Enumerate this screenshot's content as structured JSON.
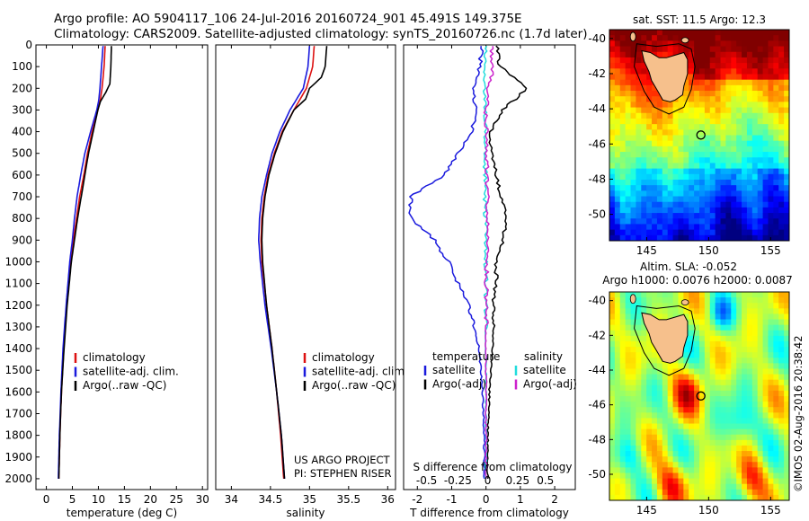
{
  "title": {
    "line1": "Argo profile: AO 5904117_106 24-Jul-2016 20160724_901 45.491S 149.375E",
    "line2": "Climatology: CARS2009. Satellite-adjusted climatology: synTS_20160726.nc (1.7d later)"
  },
  "credit": {
    "line1": "US ARGO PROJECT",
    "line2": "PI: STEPHEN RISER",
    "stamp": "©IMOS 02-Aug-2016 20:38:42"
  },
  "colors": {
    "climatology": "#dd1111",
    "satellite": "#1a1add",
    "argo": "#000000",
    "sat_salinity": "#22dddd",
    "argo_salinity": "#cc22cc",
    "land": "#f6c08c"
  },
  "chart_data": [
    {
      "type": "line",
      "name": "temperature-profile",
      "xlabel": "temperature (deg C)",
      "ylabel": "",
      "xlim": [
        -2,
        31
      ],
      "ylim": [
        2050,
        0
      ],
      "xticks": [
        0,
        5,
        10,
        15,
        20,
        25,
        30
      ],
      "yticks": [
        0,
        100,
        200,
        300,
        400,
        500,
        600,
        700,
        800,
        900,
        1000,
        1100,
        1200,
        1300,
        1400,
        1500,
        1600,
        1700,
        1800,
        1900,
        2000
      ],
      "legend": [
        "climatology",
        "satellite-adj. clim.",
        "Argo(..raw -QC)"
      ],
      "series": [
        {
          "name": "climatology",
          "color": "#dd1111",
          "depth": [
            5,
            100,
            200,
            250,
            300,
            400,
            500,
            600,
            700,
            800,
            900,
            1000,
            1200,
            1400,
            1600,
            1800,
            2000
          ],
          "values": [
            11.3,
            11.1,
            10.7,
            10.4,
            9.9,
            8.8,
            7.9,
            7.2,
            6.4,
            5.8,
            5.2,
            4.7,
            3.9,
            3.3,
            2.9,
            2.6,
            2.4
          ]
        },
        {
          "name": "satellite-adj. clim.",
          "color": "#1a1add",
          "depth": [
            5,
            100,
            200,
            250,
            300,
            400,
            500,
            600,
            700,
            800,
            900,
            1000,
            1200,
            1400,
            1600,
            1800,
            2000
          ],
          "values": [
            10.9,
            10.6,
            10.3,
            10.1,
            9.7,
            8.5,
            7.4,
            6.6,
            5.9,
            5.4,
            5.0,
            4.5,
            3.8,
            3.2,
            2.8,
            2.5,
            2.3
          ]
        },
        {
          "name": "Argo(..raw -QC)",
          "color": "#000000",
          "depth": [
            5,
            100,
            180,
            220,
            260,
            300,
            400,
            500,
            600,
            700,
            800,
            900,
            1000,
            1200,
            1400,
            1600,
            1800,
            2000
          ],
          "values": [
            12.5,
            12.4,
            12.2,
            11.4,
            10.4,
            9.9,
            9.0,
            8.1,
            7.4,
            6.7,
            6.0,
            5.4,
            4.8,
            4.0,
            3.4,
            2.9,
            2.6,
            2.4
          ]
        }
      ]
    },
    {
      "type": "line",
      "name": "salinity-profile",
      "xlabel": "salinity",
      "ylabel": "",
      "xlim": [
        33.8,
        36.1
      ],
      "ylim": [
        2050,
        0
      ],
      "xticks": [
        34,
        34.5,
        35,
        35.5,
        36
      ],
      "legend": [
        "climatology",
        "satellite-adj. clim.",
        "Argo(..raw -QC)"
      ],
      "series": [
        {
          "name": "climatology",
          "color": "#dd1111",
          "depth": [
            5,
            100,
            200,
            300,
            400,
            500,
            600,
            700,
            800,
            900,
            1000,
            1200,
            1400,
            1600,
            1800,
            2000
          ],
          "values": [
            35.06,
            35.04,
            34.96,
            34.8,
            34.65,
            34.55,
            34.47,
            34.42,
            34.39,
            34.38,
            34.39,
            34.45,
            34.52,
            34.58,
            34.63,
            34.67
          ]
        },
        {
          "name": "satellite-adj. clim.",
          "color": "#1a1add",
          "depth": [
            5,
            100,
            200,
            300,
            400,
            500,
            600,
            700,
            800,
            900,
            1000,
            1200,
            1400,
            1600,
            1800,
            2000
          ],
          "values": [
            35.0,
            34.98,
            34.92,
            34.75,
            34.62,
            34.52,
            34.45,
            34.39,
            34.36,
            34.35,
            34.37,
            34.43,
            34.51,
            34.58,
            34.64,
            34.68
          ]
        },
        {
          "name": "Argo(..raw -QC)",
          "color": "#000000",
          "depth": [
            5,
            100,
            150,
            200,
            250,
            300,
            400,
            500,
            600,
            700,
            800,
            900,
            1000,
            1200,
            1400,
            1600,
            1800,
            2000
          ],
          "values": [
            35.22,
            35.2,
            35.15,
            35.0,
            34.95,
            34.8,
            34.66,
            34.56,
            34.48,
            34.43,
            34.4,
            34.39,
            34.4,
            34.45,
            34.52,
            34.58,
            34.64,
            34.68
          ]
        }
      ]
    },
    {
      "type": "line",
      "name": "difference-profile",
      "xlabel": "T difference from climatology",
      "xlabel_top": "S difference from climatology",
      "xlim": [
        -2.4,
        2.6
      ],
      "ylim": [
        2050,
        0
      ],
      "xticks": [
        -2,
        -1,
        0,
        1,
        2
      ],
      "top_ticks": [
        {
          "label": "-0.5",
          "T": -1.73
        },
        {
          "label": "-0.25",
          "T": -0.82
        },
        {
          "label": "0",
          "T": 0.05
        },
        {
          "label": "0.25",
          "T": 0.92
        },
        {
          "label": "0.5",
          "T": 1.73
        }
      ],
      "legend_headers": [
        "temperature",
        "salinity"
      ],
      "legend": [
        "satellite",
        "Argo(-adj)",
        "satellite",
        "Argo(-adj)"
      ],
      "series": [
        {
          "name": "temperature satellite",
          "color": "#1a1add",
          "depth": [
            5,
            100,
            200,
            300,
            400,
            500,
            600,
            700,
            800,
            900,
            1000,
            1100,
            1200,
            1400,
            1600,
            1800,
            2000
          ],
          "values": [
            -0.1,
            -0.2,
            -0.35,
            -0.3,
            -0.4,
            -0.8,
            -1.2,
            -2.2,
            -2.2,
            -1.5,
            -1.1,
            -0.8,
            -0.5,
            -0.2,
            -0.1,
            -0.05,
            -0.05
          ]
        },
        {
          "name": "temperature Argo(-adj)",
          "color": "#000000",
          "depth": [
            5,
            100,
            200,
            300,
            400,
            500,
            600,
            700,
            800,
            900,
            1000,
            1100,
            1200,
            1400,
            1600,
            1800,
            2000
          ],
          "values": [
            0.3,
            0.4,
            1.2,
            0.5,
            0.1,
            0.2,
            0.3,
            0.4,
            0.6,
            0.5,
            0.3,
            0.3,
            0.2,
            0.2,
            0.1,
            0.05,
            0.05
          ]
        },
        {
          "name": "salinity satellite",
          "color": "#22dddd",
          "depth": [
            5,
            100,
            200,
            300,
            400,
            500,
            600,
            700,
            800,
            900,
            1000,
            1200,
            1400,
            1600,
            1800,
            2000
          ],
          "values": [
            -0.03,
            -0.03,
            -0.04,
            -0.03,
            -0.02,
            -0.03,
            -0.02,
            -0.03,
            -0.02,
            -0.01,
            -0.01,
            0.0,
            0.0,
            0.0,
            0.0,
            0.0
          ]
        },
        {
          "name": "salinity Argo(-adj)",
          "color": "#cc22cc",
          "depth": [
            5,
            100,
            150,
            200,
            300,
            400,
            500,
            600,
            700,
            800,
            900,
            1000,
            1200,
            1400,
            1600,
            1800,
            2000
          ],
          "values": [
            0.16,
            0.16,
            0.15,
            0.08,
            0.0,
            0.01,
            0.02,
            0.03,
            0.04,
            0.05,
            0.04,
            0.02,
            0.01,
            0.0,
            0.0,
            0.0,
            0.0
          ]
        }
      ]
    },
    {
      "type": "heatmap",
      "name": "sst-map",
      "title": "sat. SST: 11.5 Argo: 12.3",
      "xlim": [
        142,
        156.5
      ],
      "ylim": [
        -51.5,
        -39.5
      ],
      "xticks": [
        145,
        150,
        155
      ],
      "yticks": [
        -40,
        -42,
        -44,
        -46,
        -48,
        -50
      ],
      "marker": {
        "lon": 149.375,
        "lat": -45.491
      }
    },
    {
      "type": "heatmap",
      "name": "sla-map",
      "title": "Altim. SLA: -0.052",
      "subtitle": "Argo h1000: 0.0076 h2000: 0.0087",
      "xlim": [
        142,
        156.5
      ],
      "ylim": [
        -51.5,
        -39.5
      ],
      "xticks": [
        145,
        150,
        155
      ],
      "yticks": [
        -40,
        -42,
        -44,
        -46,
        -48,
        -50
      ],
      "marker": {
        "lon": 149.375,
        "lat": -45.491
      }
    }
  ]
}
